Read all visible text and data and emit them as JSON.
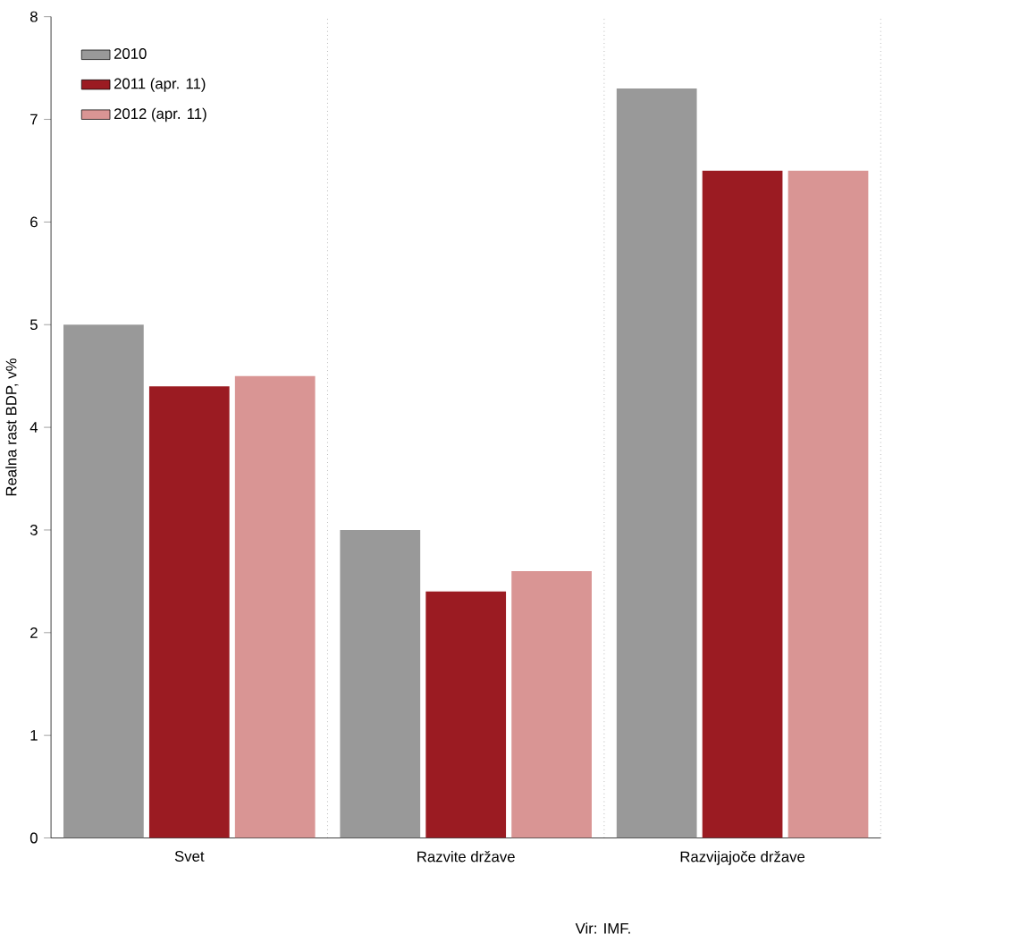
{
  "chart_data": {
    "type": "bar",
    "ylabel": "Realna rast BDP, v%",
    "categories": [
      "Svet",
      "Razvite države",
      "Razvijajoče države"
    ],
    "series": [
      {
        "name": "2010",
        "color": "#999999",
        "values": [
          5.0,
          3.0,
          7.3
        ]
      },
      {
        "name": "2011 (apr. 11)",
        "color": "#9b1b22",
        "values": [
          4.4,
          2.4,
          6.5
        ]
      },
      {
        "name": "2012 (apr. 11)",
        "color": "#d99594",
        "values": [
          4.5,
          2.6,
          6.5
        ]
      }
    ],
    "ylim": [
      0,
      8
    ],
    "yticks": [
      0,
      1,
      2,
      3,
      4,
      5,
      6,
      7,
      8
    ],
    "grid": "x",
    "legend": "top left",
    "annotations": [
      "Vir: IMF."
    ]
  }
}
